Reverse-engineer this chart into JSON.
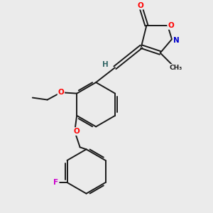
{
  "bg_color": "#ebebeb",
  "bond_color": "#1a1a1a",
  "atom_colors": {
    "O": "#ff0000",
    "N": "#0000cc",
    "F": "#cc00cc",
    "H": "#336666",
    "C": "#1a1a1a"
  }
}
